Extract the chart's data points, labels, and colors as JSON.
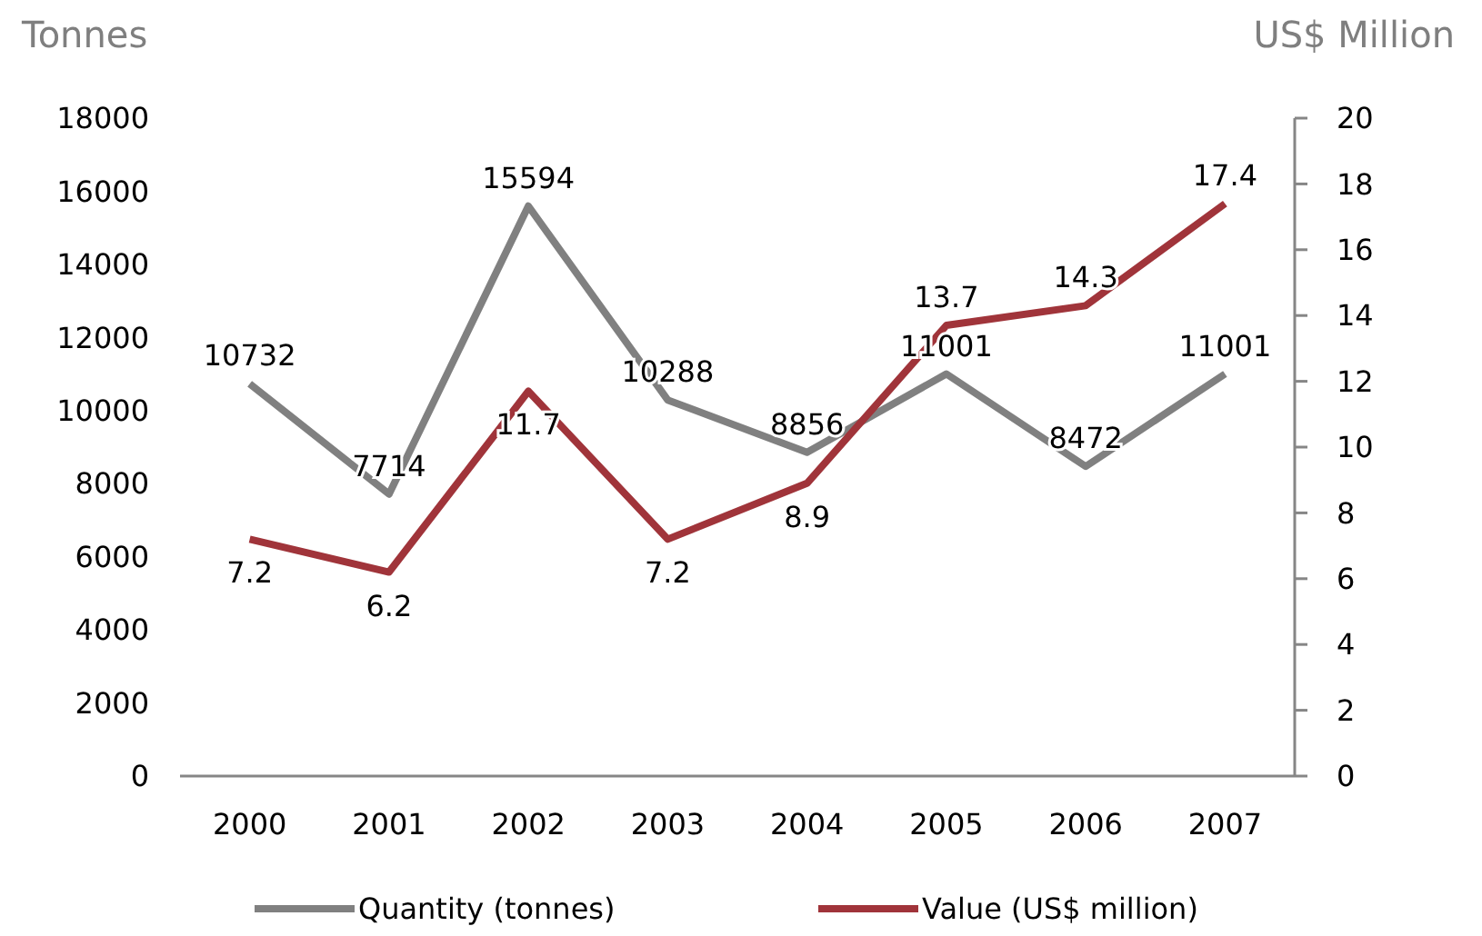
{
  "chart_data": {
    "type": "line",
    "categories": [
      "2000",
      "2001",
      "2002",
      "2003",
      "2004",
      "2005",
      "2006",
      "2007"
    ],
    "ylabel": "Tonnes",
    "y2label": "US$ Million",
    "ylim": [
      0,
      18000
    ],
    "yticks": [
      0,
      2000,
      4000,
      6000,
      8000,
      10000,
      12000,
      14000,
      16000,
      18000
    ],
    "y2lim": [
      0,
      20
    ],
    "y2ticks": [
      0,
      2,
      4,
      6,
      8,
      10,
      12,
      14,
      16,
      18,
      20
    ],
    "series": [
      {
        "name": "Quantity (tonnes)",
        "color": "#808080",
        "values": [
          10732,
          7714,
          15594,
          10288,
          8856,
          11001,
          8472,
          11001
        ]
      },
      {
        "name": "Value (US$ million)",
        "color": "#a0343a",
        "axis": "y2",
        "values": [
          7.2,
          6.2,
          11.7,
          7.2,
          8.9,
          13.7,
          14.3,
          17.4
        ]
      }
    ],
    "data_labels": true,
    "legend": "bottom",
    "grid": false,
    "marker": "none",
    "line_style": "solid"
  }
}
